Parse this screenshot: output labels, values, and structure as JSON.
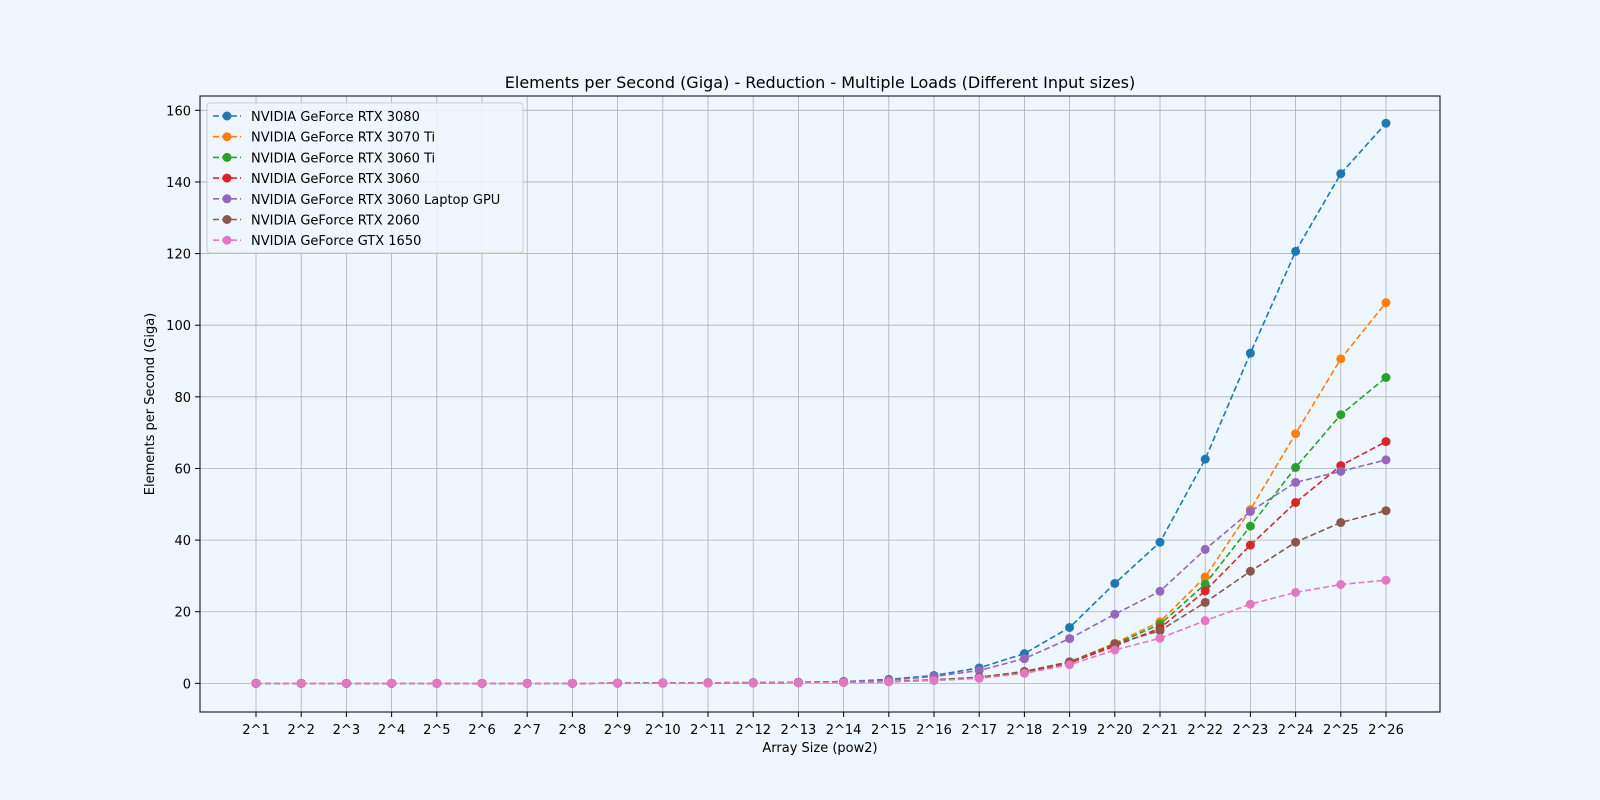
{
  "chart_data": {
    "type": "line",
    "title": "Elements per Second (Giga) - Reduction - Multiple Loads (Different Input sizes)",
    "xlabel": "Array Size (pow2)",
    "ylabel": "Elements per Second (Giga)",
    "ylim": [
      -8,
      164
    ],
    "yticks": [
      0,
      20,
      40,
      60,
      80,
      100,
      120,
      140,
      160
    ],
    "grid": true,
    "legend_position": "top-left",
    "line_style": "dashed",
    "marker": "circle",
    "categories": [
      "2^1",
      "2^2",
      "2^3",
      "2^4",
      "2^5",
      "2^6",
      "2^7",
      "2^8",
      "2^9",
      "2^10",
      "2^11",
      "2^12",
      "2^13",
      "2^14",
      "2^15",
      "2^16",
      "2^17",
      "2^18",
      "2^19",
      "2^20",
      "2^21",
      "2^22",
      "2^23",
      "2^24",
      "2^25",
      "2^26"
    ],
    "series": [
      {
        "name": "NVIDIA GeForce RTX 3080",
        "color": "#1f77b4",
        "values": [
          0,
          0,
          0,
          0,
          0,
          0,
          0,
          0,
          0.05,
          0.1,
          0.15,
          0.2,
          0.3,
          0.5,
          1.1,
          2.2,
          4.3,
          8.3,
          15.6,
          27.9,
          39.4,
          62.6,
          92.2,
          120.6,
          142.3,
          156.4
        ]
      },
      {
        "name": "NVIDIA GeForce RTX 3070 Ti",
        "color": "#ff7f0e",
        "values": [
          0,
          0,
          0,
          0,
          0,
          0,
          0,
          0,
          0.03,
          0.05,
          0.08,
          0.12,
          0.18,
          0.3,
          0.5,
          1.0,
          1.7,
          3.3,
          6.0,
          11.2,
          17.2,
          29.7,
          48.5,
          69.7,
          90.6,
          106.3
        ]
      },
      {
        "name": "NVIDIA GeForce RTX 3060 Ti",
        "color": "#2ca02c",
        "values": [
          0,
          0,
          0,
          0,
          0,
          0,
          0,
          0,
          0.03,
          0.05,
          0.08,
          0.12,
          0.18,
          0.3,
          0.5,
          1.0,
          1.7,
          3.2,
          5.9,
          10.9,
          16.5,
          27.7,
          43.9,
          60.3,
          75.0,
          85.4
        ]
      },
      {
        "name": "NVIDIA GeForce RTX 3060",
        "color": "#d62728",
        "values": [
          0,
          0,
          0,
          0,
          0,
          0,
          0,
          0,
          0.03,
          0.05,
          0.08,
          0.12,
          0.18,
          0.3,
          0.5,
          0.9,
          1.6,
          3.1,
          5.7,
          10.4,
          15.4,
          25.8,
          38.6,
          50.5,
          60.8,
          67.5
        ]
      },
      {
        "name": "NVIDIA GeForce RTX 3060 Laptop GPU",
        "color": "#9467bd",
        "values": [
          0,
          0,
          0,
          0,
          0,
          0,
          0,
          0,
          0.05,
          0.1,
          0.15,
          0.2,
          0.3,
          0.5,
          0.9,
          1.9,
          3.6,
          6.9,
          12.5,
          19.3,
          25.7,
          37.4,
          48.0,
          56.1,
          59.2,
          62.4
        ]
      },
      {
        "name": "NVIDIA GeForce RTX 2060",
        "color": "#8c564b",
        "values": [
          0,
          0,
          0,
          0,
          0,
          0,
          0,
          0,
          0.03,
          0.05,
          0.08,
          0.12,
          0.18,
          0.3,
          0.5,
          0.9,
          1.7,
          3.3,
          6.0,
          11.0,
          14.7,
          22.6,
          31.3,
          39.4,
          44.9,
          48.2
        ]
      },
      {
        "name": "NVIDIA GeForce GTX 1650",
        "color": "#e377c2",
        "values": [
          0,
          0,
          0,
          0,
          0,
          0,
          0,
          0,
          0.02,
          0.04,
          0.06,
          0.1,
          0.15,
          0.25,
          0.45,
          0.8,
          1.4,
          2.8,
          5.2,
          9.3,
          12.6,
          17.5,
          22.1,
          25.4,
          27.6,
          28.8
        ]
      }
    ]
  }
}
